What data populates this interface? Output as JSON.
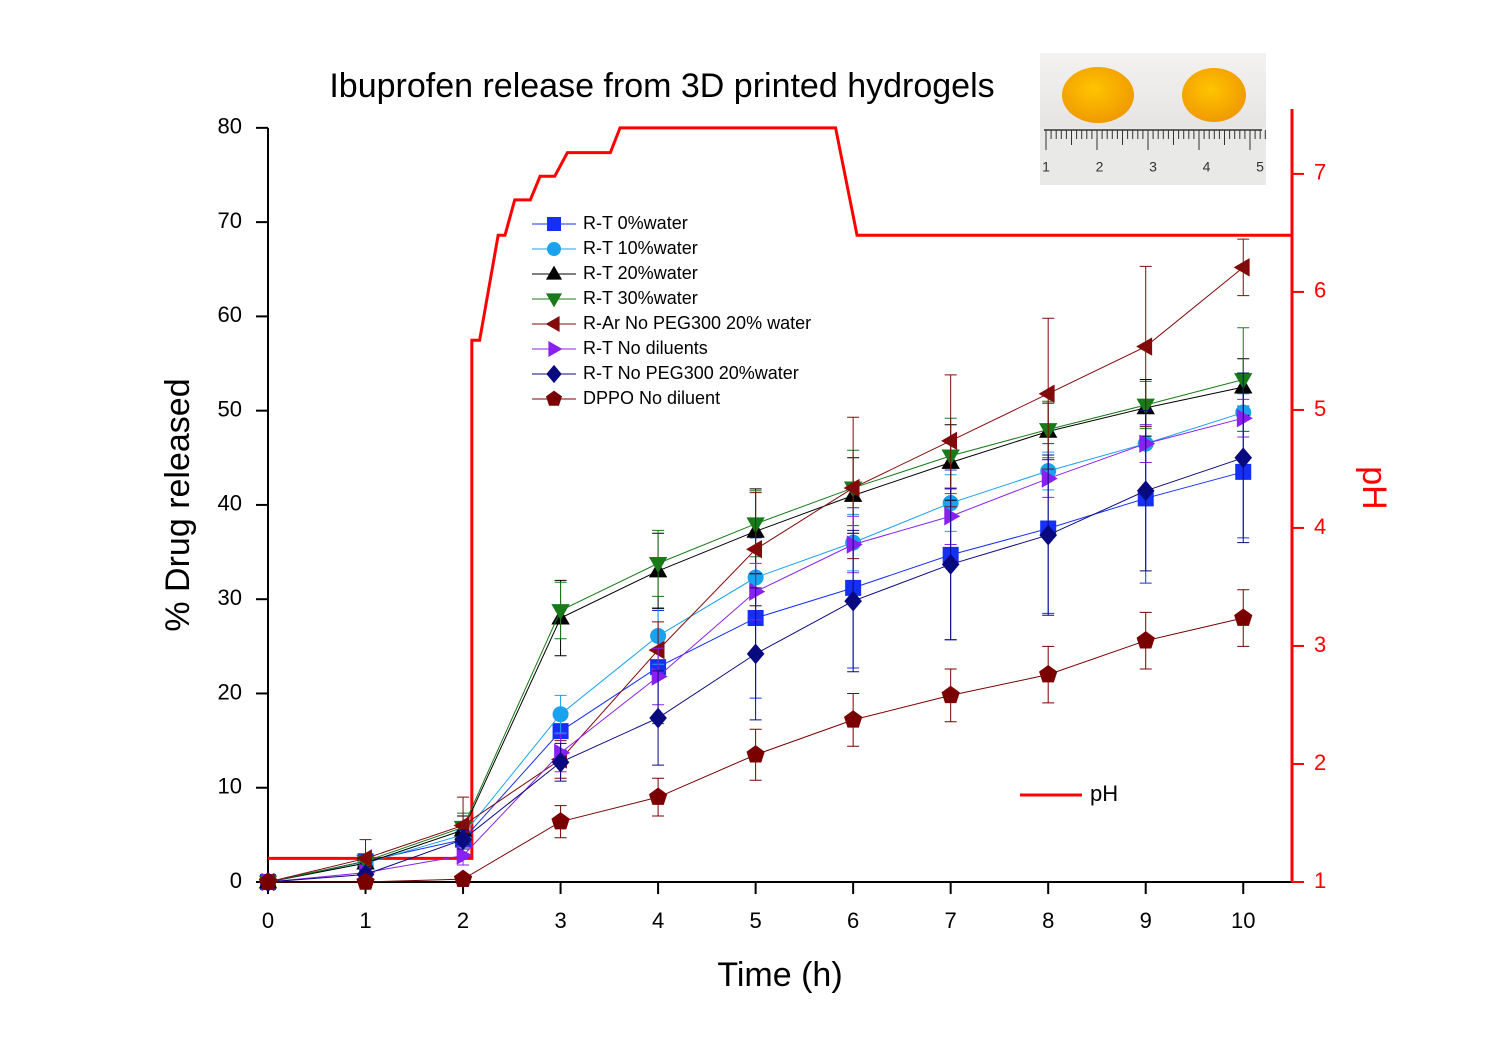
{
  "chart_data": {
    "type": "line",
    "title": "Ibuprofen release from 3D printed hydrogels",
    "x_label": "Time (h)",
    "y_label": "% Drug released",
    "y2_label": "pH",
    "x": [
      0,
      1,
      2,
      3,
      4,
      5,
      6,
      7,
      8,
      9,
      10
    ],
    "xlim": [
      0,
      10.5
    ],
    "xticks": [
      0,
      1,
      2,
      3,
      4,
      5,
      6,
      7,
      8,
      9,
      10
    ],
    "ylim": [
      0,
      82
    ],
    "yticks": [
      0,
      10,
      20,
      30,
      40,
      50,
      60,
      70,
      80
    ],
    "y2lim": [
      1,
      7.55
    ],
    "y2ticks": [
      1,
      2,
      3,
      4,
      5,
      6,
      7
    ],
    "series": [
      {
        "name": "R-T 0%water",
        "color": "#1530f5",
        "marker": "square",
        "values": [
          0,
          2.2,
          4.5,
          16,
          22.8,
          28,
          31.2,
          34.7,
          37.5,
          40.7,
          43.5
        ],
        "errors": [
          0,
          0.5,
          1,
          2,
          6,
          8.5,
          8.5,
          9,
          9,
          9,
          7
        ]
      },
      {
        "name": "R-T 10%water",
        "color": "#19a2ee",
        "marker": "circle",
        "values": [
          0,
          2,
          5,
          17.8,
          26.1,
          32.3,
          36,
          40.2,
          43.6,
          46.5,
          49.8
        ],
        "errors": [
          0,
          0.5,
          1,
          2,
          3,
          3,
          3,
          3,
          2,
          2,
          2
        ]
      },
      {
        "name": "R-T 20%water",
        "color": "#000000",
        "marker": "triangle-up",
        "values": [
          0,
          2,
          5.5,
          28,
          33,
          37.2,
          41,
          44.5,
          47.8,
          50.3,
          52.5
        ],
        "errors": [
          0,
          0.5,
          1.5,
          4,
          4,
          4.5,
          4,
          4,
          3,
          3,
          3
        ]
      },
      {
        "name": "R-T 30%water",
        "color": "#197a19",
        "marker": "triangle-down",
        "values": [
          0,
          2.2,
          5.8,
          28.8,
          33.8,
          38,
          41.8,
          45.2,
          48,
          50.6,
          53.3
        ],
        "errors": [
          0,
          0.5,
          1.5,
          3,
          3.5,
          3.5,
          4,
          4,
          3,
          2.5,
          5.5
        ]
      },
      {
        "name": "R-Ar No PEG300 20% water",
        "color": "#820a0a",
        "marker": "triangle-left",
        "values": [
          0,
          2.5,
          6,
          13,
          24.6,
          35.3,
          41.8,
          46.8,
          51.8,
          56.8,
          65.2
        ],
        "errors": [
          0,
          2,
          3,
          2,
          3,
          6,
          7.5,
          7,
          8,
          8.5,
          3
        ]
      },
      {
        "name": "R-T No diluents",
        "color": "#8a20f0",
        "marker": "triangle-right",
        "values": [
          0,
          1,
          2.8,
          13.7,
          21.8,
          30.8,
          35.8,
          38.8,
          42.8,
          46.5,
          49.2
        ],
        "errors": [
          0,
          0.5,
          1,
          2,
          3,
          3,
          3,
          3,
          2,
          2,
          2
        ]
      },
      {
        "name": "R-T No PEG300 20%water",
        "color": "#0a0a80",
        "marker": "diamond",
        "values": [
          0,
          0.8,
          4.5,
          12.7,
          17.4,
          24.2,
          29.8,
          33.7,
          36.8,
          41.5,
          45
        ],
        "errors": [
          0,
          0.5,
          1,
          2,
          5,
          7,
          7.5,
          8,
          8.5,
          8.5,
          9
        ]
      },
      {
        "name": "DPPO No diluent",
        "color": "#7a0000",
        "marker": "pentagon",
        "values": [
          0,
          0,
          0.3,
          6.4,
          9,
          13.5,
          17.2,
          19.8,
          22,
          25.6,
          28
        ],
        "errors": [
          0,
          0.3,
          0.5,
          1.7,
          2,
          2.7,
          2.8,
          2.8,
          3,
          3,
          3
        ]
      }
    ],
    "ph_series": {
      "name": "pH",
      "color": "#ff0000",
      "axis": "y2",
      "x": [
        0,
        2.09,
        2.09,
        2.17,
        2.36,
        2.43,
        2.53,
        2.69,
        2.79,
        2.94,
        3.07,
        3.51,
        3.61,
        5.82,
        6.04,
        10.5
      ],
      "values": [
        1.2,
        1.2,
        5.59,
        5.59,
        6.48,
        6.48,
        6.78,
        6.78,
        6.98,
        6.98,
        7.18,
        7.18,
        7.39,
        7.39,
        6.48,
        6.48
      ]
    },
    "inset_ruler_labels": [
      "1",
      "2",
      "3",
      "4",
      "5"
    ]
  }
}
